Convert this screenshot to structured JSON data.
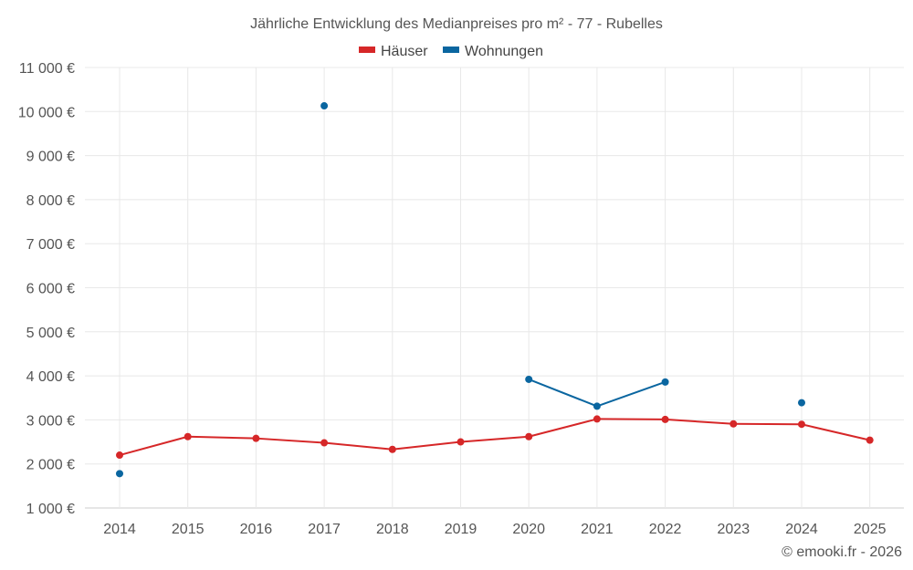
{
  "chart_data": {
    "type": "line",
    "title": "Jährliche Entwicklung des Medianpreises pro m² - 77 - Rubelles",
    "categories": [
      "2014",
      "2015",
      "2016",
      "2017",
      "2018",
      "2019",
      "2020",
      "2021",
      "2022",
      "2023",
      "2024",
      "2025"
    ],
    "series": [
      {
        "name": "Häuser",
        "color": "#d62728",
        "values": [
          2200,
          2620,
          2580,
          2480,
          2330,
          2500,
          2620,
          3020,
          3010,
          2910,
          2900,
          2540
        ]
      },
      {
        "name": "Wohnungen",
        "color": "#0a66a0",
        "values": [
          1780,
          null,
          null,
          10130,
          null,
          null,
          3920,
          3310,
          3860,
          null,
          3390,
          null
        ]
      }
    ],
    "ylim": [
      1000,
      11000
    ],
    "yticks": [
      1000,
      2000,
      3000,
      4000,
      5000,
      6000,
      7000,
      8000,
      9000,
      10000,
      11000
    ],
    "ytick_labels": [
      "1 000 €",
      "2 000 €",
      "3 000 €",
      "4 000 €",
      "5 000 €",
      "6 000 €",
      "7 000 €",
      "8 000 €",
      "9 000 €",
      "10 000 €",
      "11 000 €"
    ],
    "xlabel": "",
    "ylabel": "",
    "legend_position": "top-center",
    "grid": true,
    "credit": "© emooki.fr - 2026"
  }
}
